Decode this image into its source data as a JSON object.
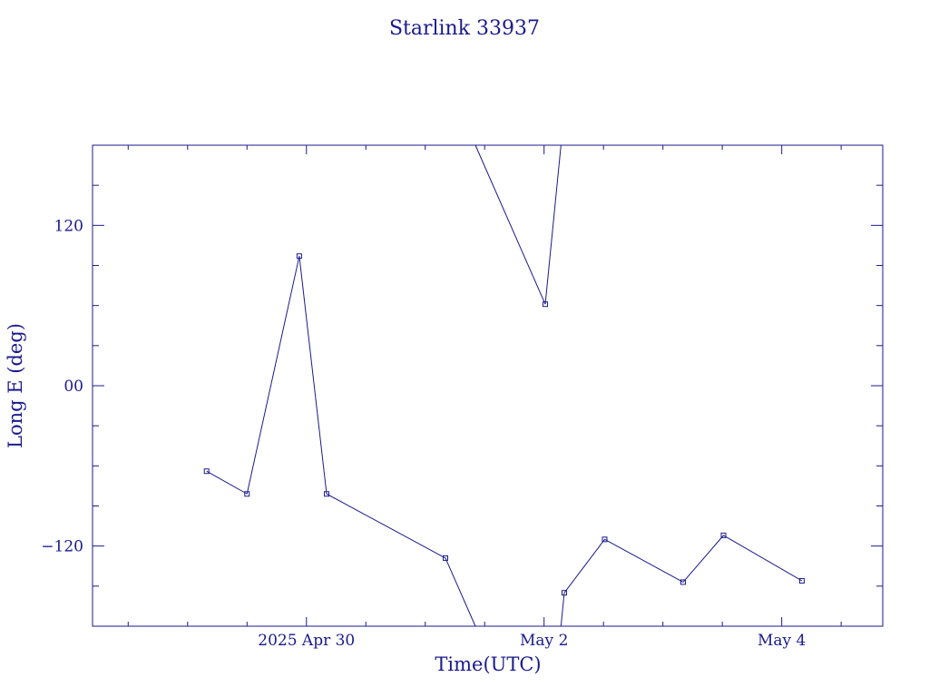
{
  "chart_data": {
    "type": "line",
    "title": "Starlink 33937",
    "xlabel": "Time(UTC)",
    "ylabel": "Long E (deg)",
    "x_ticks": [
      {
        "t": 0.5,
        "label": "2025 Apr 30"
      },
      {
        "t": 2.5,
        "label": "May  2"
      },
      {
        "t": 4.5,
        "label": "May  4"
      }
    ],
    "y_ticks": [
      {
        "v": 120,
        "label": "120"
      },
      {
        "v": 0,
        "label": "00"
      },
      {
        "v": -120,
        "label": "−120"
      }
    ],
    "xlim": [
      -1.3,
      5.35
    ],
    "ylim": [
      -180,
      180
    ],
    "x_unit": "days since 2025-04-30 00:00 UTC (axis shows dates)",
    "points": [
      {
        "t": -0.34,
        "lon": -64
      },
      {
        "t": -0.0,
        "lon": -81
      },
      {
        "t": 0.44,
        "lon": 97
      },
      {
        "t": 0.67,
        "lon": -81
      },
      {
        "t": 1.67,
        "lon": -129
      },
      {
        "t": 2.51,
        "lon": 61
      },
      {
        "t": 2.67,
        "lon": -155
      },
      {
        "t": 3.01,
        "lon": -115
      },
      {
        "t": 3.67,
        "lon": -147
      },
      {
        "t": 4.01,
        "lon": -112
      },
      {
        "t": 4.67,
        "lon": -146
      }
    ],
    "series_color": "#1a1a8c",
    "grid": false
  }
}
